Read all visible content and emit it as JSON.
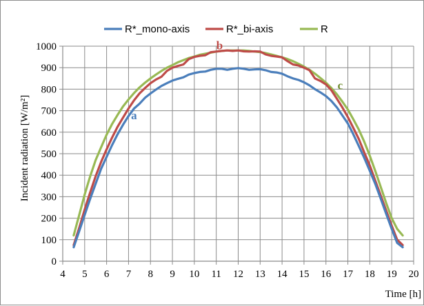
{
  "chart_data": {
    "type": "line",
    "title": "",
    "xlabel": "Time [h]",
    "ylabel": "Incident  radiation [W/m²]",
    "xlim": [
      4,
      20
    ],
    "ylim": [
      0,
      1000
    ],
    "x_ticks": [
      4,
      5,
      6,
      7,
      8,
      9,
      10,
      11,
      12,
      13,
      14,
      15,
      16,
      17,
      18,
      19,
      20
    ],
    "y_ticks": [
      0,
      100,
      200,
      300,
      400,
      500,
      600,
      700,
      800,
      900,
      1000
    ],
    "grid": true,
    "legend_position": "top",
    "series": [
      {
        "name": "R*_mono-axis",
        "color": "#4a7ebb",
        "x": [
          4.5,
          4.75,
          5,
          5.25,
          5.5,
          5.75,
          6,
          6.25,
          6.5,
          6.75,
          7,
          7.25,
          7.5,
          7.75,
          8,
          8.25,
          8.5,
          8.75,
          9,
          9.25,
          9.5,
          9.75,
          10,
          10.25,
          10.5,
          10.75,
          11,
          11.25,
          11.5,
          11.75,
          12,
          12.25,
          12.5,
          12.75,
          13,
          13.25,
          13.5,
          13.75,
          14,
          14.25,
          14.5,
          14.75,
          15,
          15.25,
          15.5,
          15.75,
          16,
          16.25,
          16.5,
          16.75,
          17,
          17.25,
          17.5,
          17.75,
          18,
          18.25,
          18.5,
          18.75,
          19,
          19.25,
          19.5
        ],
        "values": [
          65,
          140,
          215,
          290,
          360,
          430,
          485,
          540,
          590,
          635,
          675,
          710,
          732,
          760,
          780,
          798,
          815,
          828,
          840,
          848,
          855,
          868,
          875,
          880,
          882,
          890,
          895,
          895,
          890,
          895,
          898,
          895,
          890,
          892,
          893,
          888,
          880,
          878,
          872,
          860,
          850,
          843,
          832,
          818,
          800,
          785,
          768,
          745,
          715,
          678,
          640,
          590,
          535,
          480,
          420,
          360,
          290,
          220,
          150,
          85,
          65
        ]
      },
      {
        "name": "R*_bi-axis",
        "color": "#be4b48",
        "x": [
          4.5,
          4.75,
          5,
          5.25,
          5.5,
          5.75,
          6,
          6.25,
          6.5,
          6.75,
          7,
          7.25,
          7.5,
          7.75,
          8,
          8.25,
          8.5,
          8.75,
          9,
          9.25,
          9.5,
          9.75,
          10,
          10.25,
          10.5,
          10.75,
          11,
          11.25,
          11.5,
          11.75,
          12,
          12.25,
          12.5,
          12.75,
          13,
          13.25,
          13.5,
          13.75,
          14,
          14.25,
          14.5,
          14.75,
          15,
          15.25,
          15.5,
          15.75,
          16,
          16.25,
          16.5,
          16.75,
          17,
          17.25,
          17.5,
          17.75,
          18,
          18.25,
          18.5,
          18.75,
          19,
          19.25,
          19.5
        ],
        "values": [
          75,
          155,
          240,
          320,
          395,
          462,
          520,
          575,
          625,
          668,
          710,
          748,
          780,
          805,
          828,
          845,
          858,
          885,
          900,
          908,
          915,
          940,
          950,
          955,
          958,
          972,
          975,
          978,
          980,
          978,
          980,
          976,
          975,
          976,
          975,
          962,
          955,
          952,
          948,
          930,
          915,
          910,
          900,
          888,
          850,
          838,
          822,
          795,
          755,
          715,
          670,
          620,
          568,
          505,
          445,
          375,
          305,
          235,
          165,
          100,
          75
        ]
      },
      {
        "name": "R",
        "color": "#98b954",
        "x": [
          4.5,
          4.75,
          5,
          5.25,
          5.5,
          5.75,
          6,
          6.25,
          6.5,
          6.75,
          7,
          7.25,
          7.5,
          7.75,
          8,
          8.25,
          8.5,
          8.75,
          9,
          9.25,
          9.5,
          9.75,
          10,
          10.25,
          10.5,
          10.75,
          11,
          11.25,
          11.5,
          11.75,
          12,
          12.25,
          12.5,
          12.75,
          13,
          13.25,
          13.5,
          13.75,
          14,
          14.25,
          14.5,
          14.75,
          15,
          15.25,
          15.5,
          15.75,
          16,
          16.25,
          16.5,
          16.75,
          17,
          17.25,
          17.5,
          17.75,
          18,
          18.25,
          18.5,
          18.75,
          19,
          19.25,
          19.5
        ],
        "values": [
          120,
          215,
          310,
          395,
          470,
          530,
          588,
          638,
          680,
          720,
          752,
          782,
          808,
          830,
          850,
          868,
          885,
          900,
          912,
          925,
          935,
          945,
          952,
          960,
          965,
          970,
          975,
          978,
          980,
          980,
          980,
          980,
          978,
          975,
          972,
          968,
          962,
          955,
          948,
          940,
          930,
          918,
          905,
          890,
          872,
          852,
          830,
          805,
          776,
          742,
          705,
          660,
          612,
          555,
          490,
          420,
          345,
          270,
          200,
          150,
          120
        ]
      }
    ],
    "annotations": [
      {
        "text": "a",
        "x": 7.25,
        "y": 660,
        "color": "#4a7ebb"
      },
      {
        "text": "b",
        "x": 11.15,
        "y": 985,
        "color": "#be4b48"
      },
      {
        "text": "c",
        "x": 16.65,
        "y": 800,
        "color": "#6e8b2e"
      }
    ]
  }
}
